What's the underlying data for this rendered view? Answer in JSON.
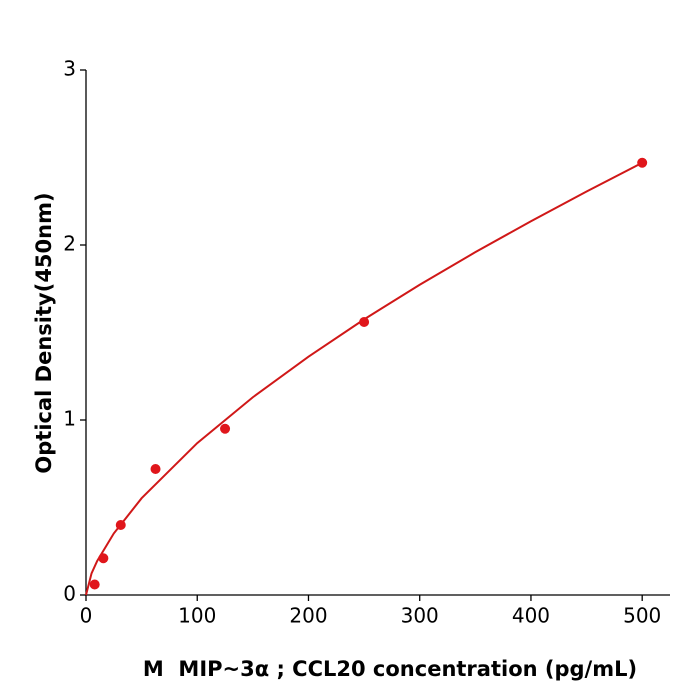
{
  "chart_data": {
    "type": "scatter",
    "xlabel": "M  MIP~3α ; CCL20 concentration (pg/mL)",
    "ylabel": "Optical Density(450nm)",
    "xlim": [
      0,
      525
    ],
    "ylim": [
      0,
      3
    ],
    "xticks": [
      0,
      100,
      200,
      300,
      400,
      500
    ],
    "yticks": [
      0,
      1,
      2,
      3
    ],
    "series": [
      {
        "kind": "points",
        "color": "#e0161b",
        "x": [
          7.8,
          15.6,
          31.25,
          62.5,
          125,
          250,
          500
        ],
        "values": [
          0.06,
          0.21,
          0.4,
          0.72,
          0.95,
          1.56,
          2.47
        ]
      },
      {
        "kind": "line",
        "color": "#d01818",
        "x": [
          0,
          5,
          10,
          25,
          50,
          100,
          150,
          200,
          250,
          300,
          350,
          400,
          450,
          500
        ],
        "values": [
          0,
          0.124,
          0.194,
          0.352,
          0.553,
          0.868,
          1.13,
          1.362,
          1.575,
          1.773,
          1.959,
          2.136,
          2.306,
          2.47
        ]
      }
    ]
  }
}
